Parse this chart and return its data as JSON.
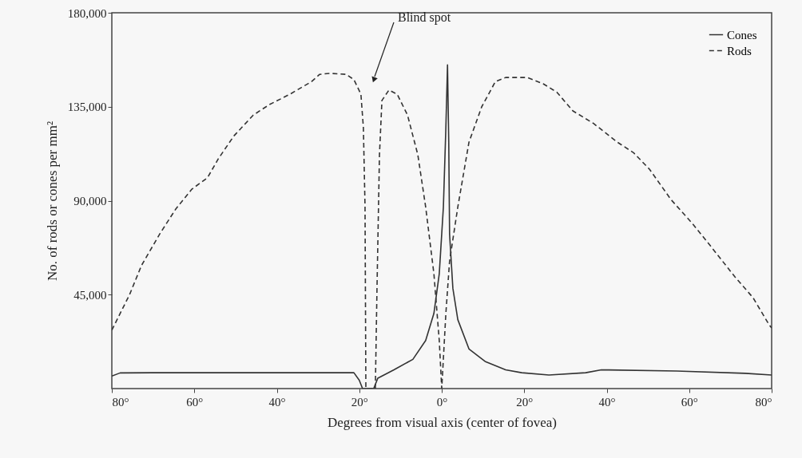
{
  "chart_data": {
    "type": "line",
    "xlabel": "Degrees from visual axis (center of fovea)",
    "ylabel": "No. of rods or cones per mm²",
    "xlim": [
      -80,
      80
    ],
    "ylim": [
      0,
      180000
    ],
    "xticks": [
      {
        "value": -80,
        "label": "80°"
      },
      {
        "value": -60,
        "label": "60°"
      },
      {
        "value": -40,
        "label": "40°"
      },
      {
        "value": -20,
        "label": "20°"
      },
      {
        "value": 0,
        "label": "0°"
      },
      {
        "value": 20,
        "label": "20°"
      },
      {
        "value": 40,
        "label": "40°"
      },
      {
        "value": 60,
        "label": "60°"
      },
      {
        "value": 80,
        "label": "80°"
      }
    ],
    "yticks": [
      {
        "value": 45000,
        "label": "45,000"
      },
      {
        "value": 90000,
        "label": "90,000"
      },
      {
        "value": 135000,
        "label": "135,000"
      },
      {
        "value": 180000,
        "label": "180,000"
      }
    ],
    "grid": false,
    "legend": "top right",
    "marker": "none",
    "annotations": [
      "Blind spot"
    ],
    "series": [
      {
        "name": "Cones",
        "color": "#333333",
        "line_style": "solid",
        "x": [
          -80,
          -78,
          -70,
          -60,
          -50,
          -40,
          -30,
          -21.3,
          -20,
          -19.2,
          -16.5,
          -15.5,
          -11.6,
          -7,
          -3.9,
          -1.9,
          -0.6,
          0.4,
          1,
          1.4,
          1.7,
          1.9,
          2.7,
          3.9,
          6.6,
          10.5,
          15.5,
          19.4,
          26,
          34.9,
          38.7,
          57,
          73.6,
          80
        ],
        "values": [
          6000,
          7500,
          7600,
          7600,
          7600,
          7600,
          7600,
          7600,
          4000,
          0,
          0,
          5000,
          9000,
          14000,
          23000,
          36000,
          55000,
          87000,
          125000,
          155000,
          118000,
          74000,
          48000,
          33000,
          19000,
          13000,
          9000,
          7600,
          6500,
          7600,
          9000,
          8400,
          7300,
          6500
        ]
      },
      {
        "name": "Rods",
        "color": "#333333",
        "line_style": "dashed",
        "x": [
          -80,
          -75.7,
          -72.8,
          -68.4,
          -64.5,
          -60.6,
          -56.8,
          -54.2,
          -50.4,
          -45.7,
          -41.8,
          -36.8,
          -31.6,
          -29.6,
          -27.1,
          -23.2,
          -21.3,
          -19.6,
          -19,
          -18.6,
          -18.4,
          -16.1,
          -15.7,
          -15.1,
          -14.5,
          -12.8,
          -10.8,
          -8.3,
          -5.8,
          -3.9,
          -1.9,
          -0.6,
          0,
          1,
          1.9,
          3.9,
          6.6,
          9.7,
          13,
          15.5,
          20.7,
          24.6,
          27.9,
          31.8,
          36.8,
          42.6,
          46.5,
          50.4,
          55.6,
          60.8,
          65.3,
          71.1,
          75.5,
          79.4,
          80
        ],
        "values": [
          28000,
          45000,
          59000,
          74000,
          86000,
          95500,
          101000,
          110000,
          121000,
          131000,
          136000,
          141000,
          147000,
          150500,
          151000,
          150500,
          148000,
          141000,
          125000,
          87000,
          0,
          0,
          48000,
          112000,
          138000,
          143000,
          141000,
          131000,
          112000,
          87000,
          55000,
          23000,
          0,
          36000,
          61000,
          87000,
          118000,
          135000,
          147000,
          149000,
          149000,
          146000,
          142000,
          133000,
          127000,
          118000,
          113000,
          105000,
          90500,
          79000,
          68000,
          53500,
          43500,
          30500,
          29000
        ]
      }
    ]
  }
}
